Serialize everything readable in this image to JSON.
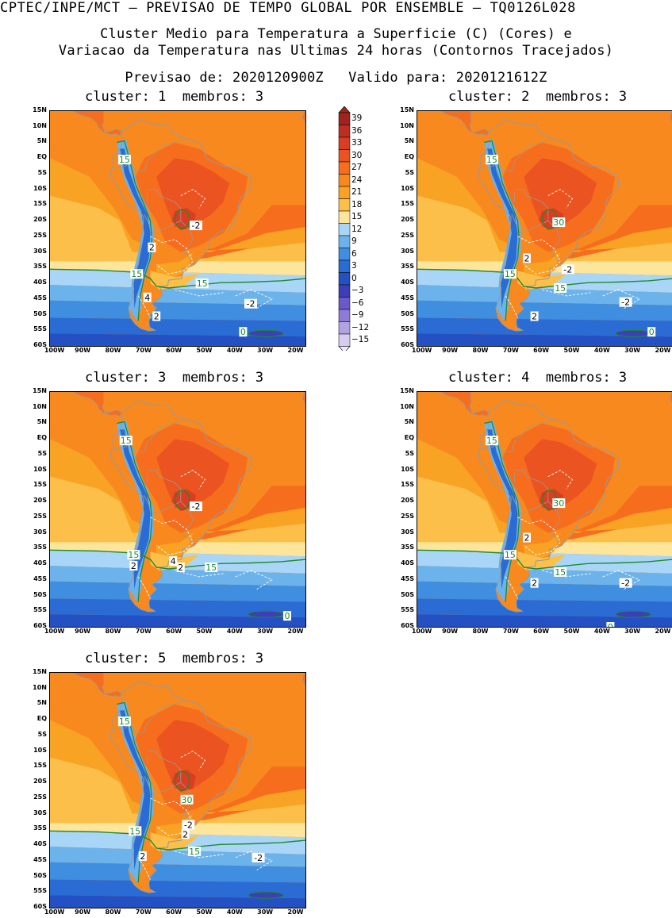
{
  "header": {
    "line1": "CPTEC/INPE/MCT — PREVISAO DE TEMPO GLOBAL POR ENSEMBLE — TQ0126L028",
    "line2": "Cluster Medio para Temperatura a Superficie (C) (Cores) e",
    "line3": "Variacao da Temperatura nas Ultimas 24 horas (Contornos Tracejados)",
    "line4": "Previsao de: 2020120900Z   Valido para: 2020121612Z"
  },
  "panels": [
    {
      "title": "cluster: 1  membros: 3",
      "labels": [
        {
          "text": "15",
          "lon": -76.5,
          "lat": -0.5,
          "style": "green"
        },
        {
          "text": "-2",
          "lon": -53,
          "lat": -21.5,
          "style": "white"
        },
        {
          "text": "2",
          "lon": -67.5,
          "lat": -28.5,
          "style": "white"
        },
        {
          "text": "15",
          "lon": -72.5,
          "lat": -37,
          "style": "green"
        },
        {
          "text": "15",
          "lon": -51,
          "lat": -40,
          "style": "green"
        },
        {
          "text": "4",
          "lon": -69,
          "lat": -44.5,
          "style": "white"
        },
        {
          "text": "-2",
          "lon": -35,
          "lat": -46.5,
          "style": "white"
        },
        {
          "text": "2",
          "lon": -66,
          "lat": -50.5,
          "style": "white"
        },
        {
          "text": "0",
          "lon": -37.5,
          "lat": -55.5,
          "style": "green"
        }
      ]
    },
    {
      "title": "cluster: 2  membros: 3",
      "labels": [
        {
          "text": "15",
          "lon": -76.5,
          "lat": -0.5,
          "style": "green"
        },
        {
          "text": "30",
          "lon": -54.5,
          "lat": -20.5,
          "style": "green"
        },
        {
          "text": "2",
          "lon": -65,
          "lat": -32,
          "style": "white"
        },
        {
          "text": "-2",
          "lon": -51.5,
          "lat": -35.5,
          "style": "white"
        },
        {
          "text": "15",
          "lon": -70.5,
          "lat": -37,
          "style": "green"
        },
        {
          "text": "15",
          "lon": -54,
          "lat": -41.5,
          "style": "green"
        },
        {
          "text": "-2",
          "lon": -32.5,
          "lat": -46,
          "style": "white"
        },
        {
          "text": "2",
          "lon": -62.5,
          "lat": -50.5,
          "style": "white"
        },
        {
          "text": "0",
          "lon": -24,
          "lat": -55.5,
          "style": "green"
        }
      ]
    },
    {
      "title": "cluster: 3  membros: 3",
      "labels": [
        {
          "text": "15",
          "lon": -76,
          "lat": -0.5,
          "style": "green"
        },
        {
          "text": "-2",
          "lon": -53,
          "lat": -21.5,
          "style": "white"
        },
        {
          "text": "15",
          "lon": -73.5,
          "lat": -37,
          "style": "green"
        },
        {
          "text": "2",
          "lon": -73.5,
          "lat": -40.5,
          "style": "white"
        },
        {
          "text": "4",
          "lon": -60.5,
          "lat": -39,
          "style": "white"
        },
        {
          "text": "2",
          "lon": -58,
          "lat": -41,
          "style": "white"
        },
        {
          "text": "15",
          "lon": -48,
          "lat": -41,
          "style": "green"
        },
        {
          "text": "0",
          "lon": -23,
          "lat": -56.5,
          "style": "green"
        }
      ]
    },
    {
      "title": "cluster: 4  membros: 3",
      "labels": [
        {
          "text": "15",
          "lon": -76.5,
          "lat": -0.5,
          "style": "green"
        },
        {
          "text": "30",
          "lon": -54.5,
          "lat": -20.5,
          "style": "green"
        },
        {
          "text": "2",
          "lon": -65,
          "lat": -31.5,
          "style": "white"
        },
        {
          "text": "15",
          "lon": -70.5,
          "lat": -37,
          "style": "green"
        },
        {
          "text": "15",
          "lon": -54,
          "lat": -42.5,
          "style": "green"
        },
        {
          "text": "2",
          "lon": -62.5,
          "lat": -46,
          "style": "white"
        },
        {
          "text": "-2",
          "lon": -32.5,
          "lat": -46,
          "style": "white"
        },
        {
          "text": "0",
          "lon": -37.5,
          "lat": -60,
          "style": "green"
        }
      ]
    },
    {
      "title": "cluster: 5  membros: 3",
      "labels": [
        {
          "text": "15",
          "lon": -76.5,
          "lat": -0.5,
          "style": "green"
        },
        {
          "text": "30",
          "lon": -56,
          "lat": -25.5,
          "style": "green"
        },
        {
          "text": "-2",
          "lon": -55.5,
          "lat": -33.5,
          "style": "white"
        },
        {
          "text": "2",
          "lon": -56.5,
          "lat": -36.5,
          "style": "white"
        },
        {
          "text": "15",
          "lon": -73,
          "lat": -35.5,
          "style": "green"
        },
        {
          "text": "2",
          "lon": -70.5,
          "lat": -43.5,
          "style": "white"
        },
        {
          "text": "15",
          "lon": -53.5,
          "lat": -42,
          "style": "green"
        },
        {
          "text": "-2",
          "lon": -32.5,
          "lat": -44,
          "style": "white"
        }
      ]
    }
  ],
  "map_axes": {
    "lat_ticks": [
      "15N",
      "10N",
      "5N",
      "EQ",
      "5S",
      "10S",
      "15S",
      "20S",
      "25S",
      "30S",
      "35S",
      "40S",
      "45S",
      "50S",
      "55S",
      "60S"
    ],
    "lon_ticks": [
      "100W",
      "90W",
      "80W",
      "70W",
      "60W",
      "50W",
      "40W",
      "30W",
      "20W"
    ],
    "lon_range": [
      -101,
      -17
    ],
    "lat_range": [
      -60,
      15
    ]
  },
  "colorbar": {
    "labels": [
      "39",
      "36",
      "33",
      "30",
      "27",
      "24",
      "21",
      "18",
      "15",
      "12",
      "9",
      "6",
      "3",
      "0",
      "−3",
      "−6",
      "−9",
      "−12",
      "−15"
    ],
    "colors": [
      "#a0231e",
      "#be2d21",
      "#d93e23",
      "#eb5320",
      "#f66d1e",
      "#f8891f",
      "#f9a325",
      "#fcc04a",
      "#fde59b",
      "#a9d6f7",
      "#6cb3ec",
      "#3f8ee0",
      "#2a6cd3",
      "#2351c4",
      "#3d3eb8",
      "#6a59c8",
      "#8d7bd6",
      "#b2a2e4",
      "#d6cbf1"
    ]
  },
  "colors": {
    "land_outline": "#9a9a9a",
    "green_contour": "#1e8a2e",
    "white_contour": "#ffffff"
  }
}
